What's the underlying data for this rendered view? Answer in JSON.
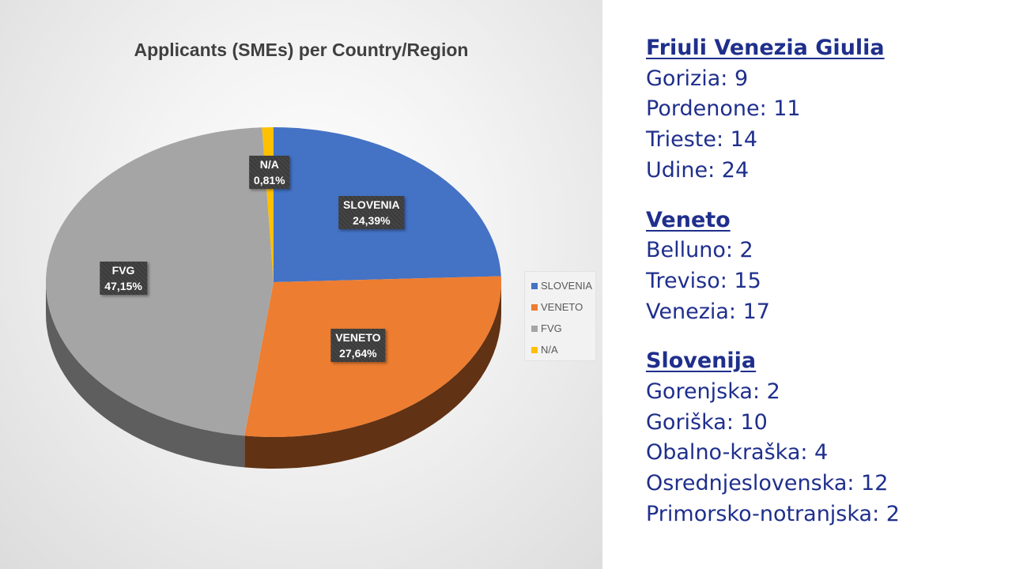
{
  "chart_data": {
    "type": "pie",
    "title": "Applicants (SMEs) per Country/Region",
    "categories": [
      "SLOVENIA",
      "VENETO",
      "FVG",
      "N/A"
    ],
    "values": [
      24.39,
      27.64,
      47.15,
      0.81
    ],
    "value_labels": [
      "24,39%",
      "27,64%",
      "47,15%",
      "0,81%"
    ],
    "colors": [
      "#4472c4",
      "#ed7d31",
      "#a5a5a5",
      "#ffc000"
    ],
    "side_colors": [
      "#2f528f",
      "#613214",
      "#5e5e5e",
      "#b38600"
    ],
    "legend": {
      "position": "right",
      "items": [
        "SLOVENIA",
        "VENETO",
        "FVG",
        "N/A"
      ]
    },
    "style": "3D"
  },
  "regions": [
    {
      "heading": "Friuli Venezia Giulia",
      "lines": [
        "Gorizia: 9",
        "Pordenone: 11",
        "Trieste: 14",
        "Udine: 24"
      ]
    },
    {
      "heading": "Veneto",
      "lines": [
        "Belluno: 2",
        "Treviso: 15",
        "Venezia: 17"
      ]
    },
    {
      "heading": "Slovenija",
      "lines": [
        "Gorenjska: 2",
        "Goriška: 10",
        "Obalno-kraška: 4",
        "Osrednjeslovenska: 12",
        "Primorsko-notranjska: 2"
      ]
    }
  ]
}
